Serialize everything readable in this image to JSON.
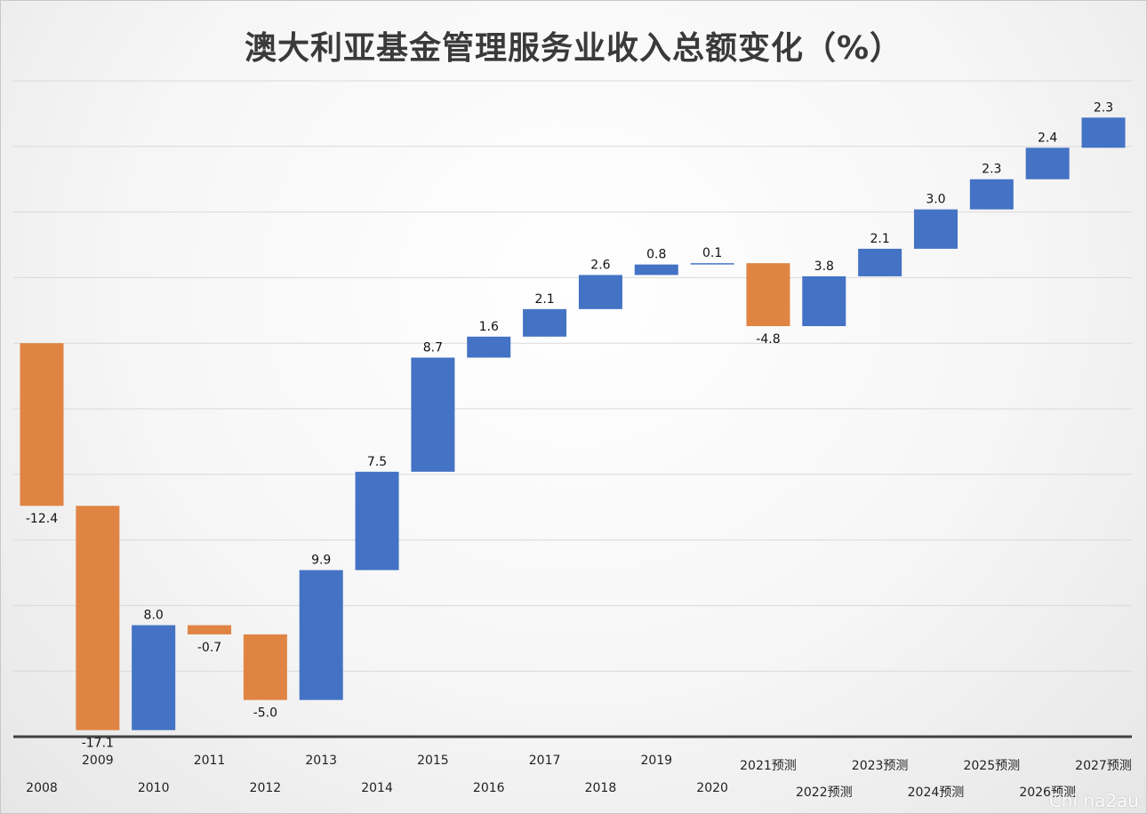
{
  "chart_data": {
    "type": "bar",
    "subtype": "waterfall",
    "title": "澳大利亚基金管理服务业收入总额变化（%）",
    "xlabel": "",
    "ylabel": "",
    "categories": [
      "2008",
      "2009",
      "2010",
      "2011",
      "2012",
      "2013",
      "2014",
      "2015",
      "2016",
      "2017",
      "2018",
      "2019",
      "2020",
      "2021预测",
      "2022预测",
      "2023预测",
      "2024预测",
      "2025预测",
      "2026预测",
      "2027预测"
    ],
    "values": [
      -12.4,
      -17.1,
      8.0,
      -0.7,
      -5.0,
      9.9,
      7.5,
      8.7,
      1.6,
      2.1,
      2.6,
      0.8,
      0.1,
      -4.8,
      3.8,
      2.1,
      3.0,
      2.3,
      2.4,
      2.3
    ],
    "labels": [
      "-12.4",
      "-17.1",
      "8.0",
      "-0.7",
      "-5.0",
      "9.9",
      "7.5",
      "8.7",
      "1.6",
      "2.1",
      "2.6",
      "0.8",
      "0.1",
      "-4.8",
      "3.8",
      "2.1",
      "3.0",
      "2.3",
      "2.4",
      "2.3"
    ],
    "start_value": 0,
    "ylim": [
      -30,
      20
    ],
    "grid": true,
    "legend": "none",
    "colors": {
      "increase": "#4472C4",
      "decrease": "#E08443",
      "grid": "#d9d9d9",
      "axis": "#404040"
    }
  },
  "watermark": "Chi na2au"
}
